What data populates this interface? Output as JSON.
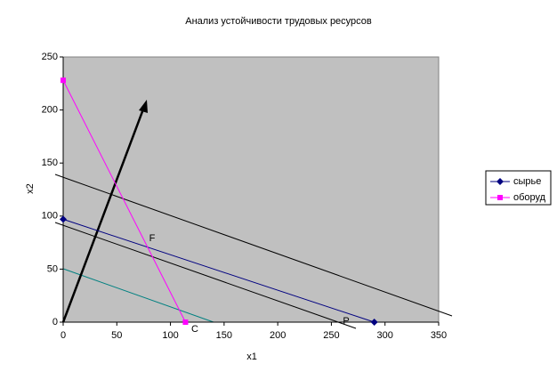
{
  "chart_data": {
    "type": "scatter",
    "title": "Анализ устойчивости трудовых ресурсов",
    "xlabel": "x1",
    "ylabel": "x2",
    "xlim": [
      0,
      350
    ],
    "xticks": [
      0,
      50,
      100,
      150,
      200,
      250,
      300,
      350
    ],
    "ylim": [
      0,
      250
    ],
    "yticks": [
      0,
      50,
      100,
      150,
      200,
      250
    ],
    "grid": false,
    "legend": "right",
    "series": [
      {
        "name": "сырье",
        "color": "#000080",
        "marker": "diamond",
        "x": [
          0,
          290
        ],
        "values": [
          97,
          0
        ]
      },
      {
        "name": "оборуд",
        "color": "#ff00ff",
        "marker": "square",
        "x": [
          0,
          114
        ],
        "values": [
          228,
          0
        ]
      }
    ],
    "annotations": [
      "F",
      "P",
      "C"
    ]
  }
}
